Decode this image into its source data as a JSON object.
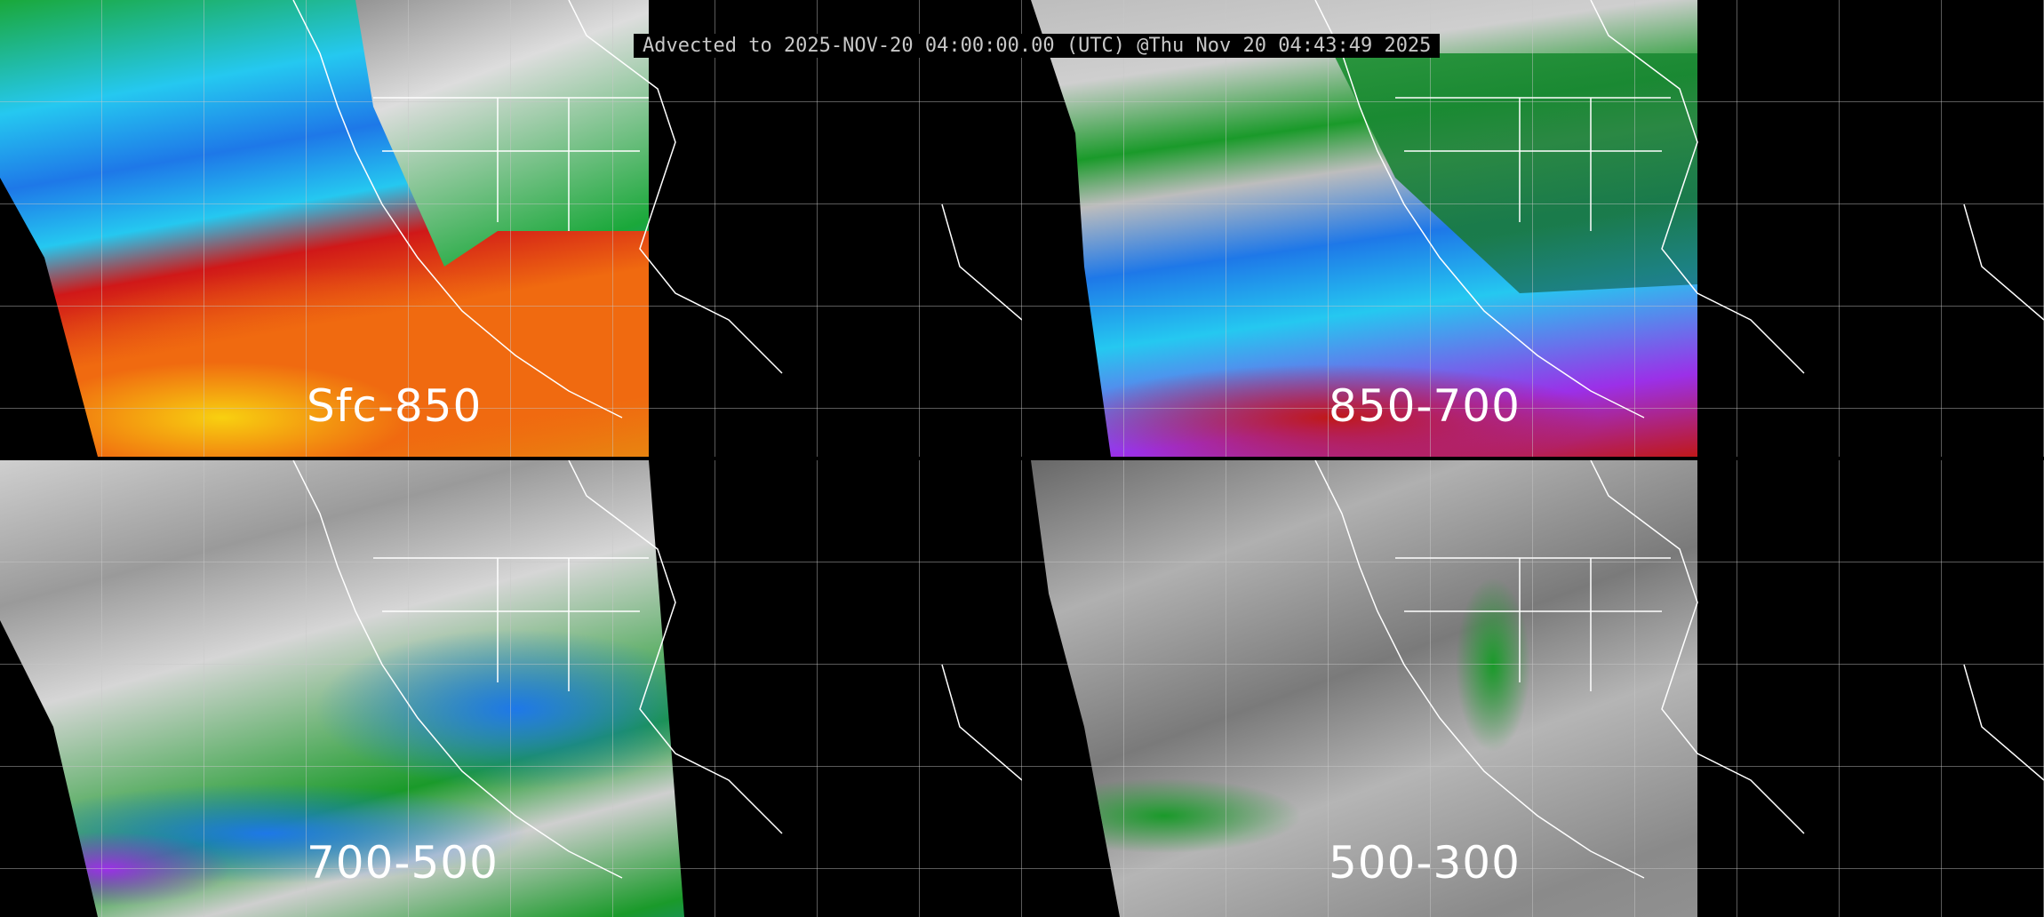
{
  "banner": {
    "text": "Advected to 2025-NOV-20 04:00:00.00 (UTC) @Thu Nov 20 04:43:49 2025"
  },
  "panels": [
    {
      "label": "Sfc-850",
      "palette": [
        "#1aa83a",
        "#25c8f0",
        "#1e78e8",
        "#9b30e8",
        "#d01818",
        "#f06a10",
        "#f8d010"
      ]
    },
    {
      "label": "850-700",
      "palette": [
        "#bdbdbd",
        "#1a9a2a",
        "#1e78e8",
        "#25c8f0",
        "#9b30e8",
        "#c01818"
      ]
    },
    {
      "label": "700-500",
      "palette": [
        "#cfcfcf",
        "#9a9a9a",
        "#1a9a2a",
        "#1e78e8",
        "#9b30e8"
      ]
    },
    {
      "label": "500-300",
      "palette": [
        "#8a8a8a",
        "#b0b0b0",
        "#666666",
        "#1a9a2a"
      ]
    }
  ]
}
